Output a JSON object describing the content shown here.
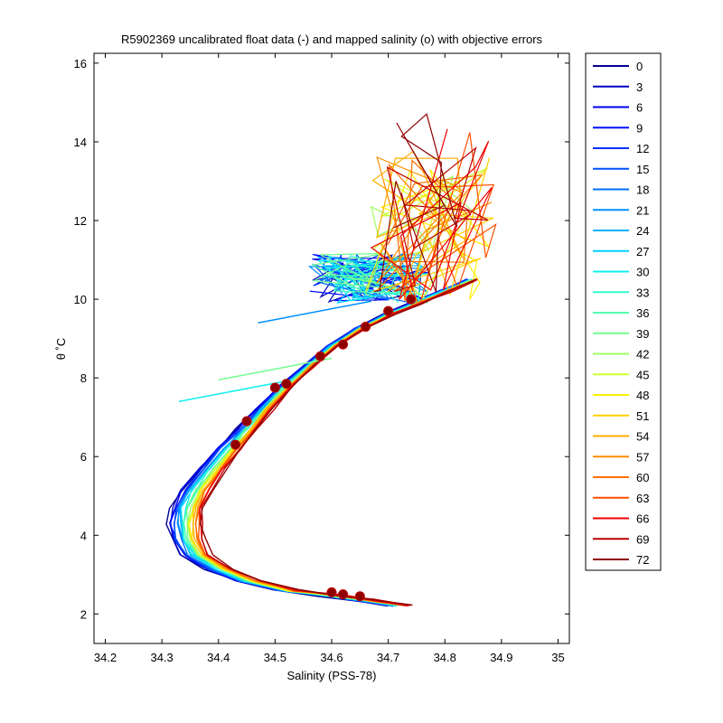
{
  "chart_data": {
    "type": "line",
    "title": "R5902369 uncalibrated float data (-) and mapped salinity (o) with objective errors",
    "xlabel": "Salinity (PSS-78)",
    "ylabel": "θ ˚C",
    "xlim": [
      34.18,
      35.02
    ],
    "ylim": [
      1.25,
      16.25
    ],
    "xticks": [
      "34.2",
      "34.3",
      "34.4",
      "34.5",
      "34.6",
      "34.7",
      "34.8",
      "34.9",
      "35"
    ],
    "yticks": [
      "2",
      "4",
      "6",
      "8",
      "10",
      "12",
      "14",
      "16"
    ],
    "grid": false,
    "legend_position": "outside-right",
    "legend_entries": [
      "0",
      "3",
      "6",
      "9",
      "12",
      "15",
      "18",
      "21",
      "24",
      "27",
      "30",
      "33",
      "36",
      "39",
      "42",
      "45",
      "48",
      "51",
      "54",
      "57",
      "60",
      "63",
      "66",
      "69",
      "72"
    ],
    "legend_colors": [
      "#00008f",
      "#0000bf",
      "#0000ef",
      "#0010ff",
      "#0030ff",
      "#0050ff",
      "#0070ff",
      "#0090ff",
      "#00b0ff",
      "#00d0ff",
      "#10f0ef",
      "#30ffcf",
      "#50ffaf",
      "#70ff8f",
      "#9fff60",
      "#cfff30",
      "#ffef00",
      "#ffcf00",
      "#ffaf00",
      "#ff8f00",
      "#ff6f00",
      "#ff4f00",
      "#ef0000",
      "#bf0000",
      "#8f0000"
    ],
    "base_profile": [
      [
        34.72,
        2.22
      ],
      [
        34.66,
        2.35
      ],
      [
        34.6,
        2.47
      ],
      [
        34.52,
        2.6
      ],
      [
        34.45,
        2.85
      ],
      [
        34.4,
        3.15
      ],
      [
        34.36,
        3.5
      ],
      [
        34.345,
        3.9
      ],
      [
        34.34,
        4.3
      ],
      [
        34.345,
        4.7
      ],
      [
        34.36,
        5.15
      ],
      [
        34.39,
        5.7
      ],
      [
        34.42,
        6.2
      ],
      [
        34.45,
        6.7
      ],
      [
        34.48,
        7.2
      ],
      [
        34.52,
        7.8
      ],
      [
        34.56,
        8.3
      ],
      [
        34.6,
        8.8
      ],
      [
        34.65,
        9.25
      ],
      [
        34.7,
        9.6
      ],
      [
        34.75,
        9.9
      ],
      [
        34.8,
        10.2
      ],
      [
        34.85,
        10.5
      ]
    ],
    "ref_points": [
      [
        34.62,
        2.5
      ],
      [
        34.65,
        2.45
      ],
      [
        34.6,
        2.55
      ],
      [
        34.43,
        6.3
      ],
      [
        34.45,
        6.9
      ],
      [
        34.5,
        7.75
      ],
      [
        34.52,
        7.85
      ],
      [
        34.58,
        8.55
      ],
      [
        34.62,
        8.85
      ],
      [
        34.66,
        9.3
      ],
      [
        34.74,
        10.0
      ],
      [
        34.7,
        9.7
      ]
    ]
  }
}
